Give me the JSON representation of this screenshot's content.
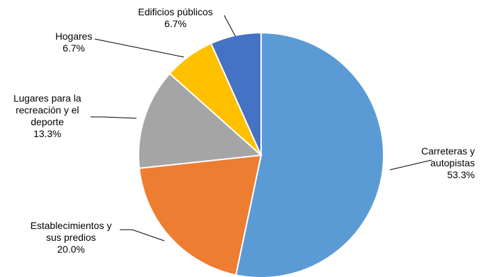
{
  "chart_data": {
    "type": "pie",
    "title": "",
    "slices": [
      {
        "label_lines": [
          "Carreteras y",
          "autopistas"
        ],
        "value": 53.3,
        "value_label": "53.3%",
        "color": "#5B9BD5"
      },
      {
        "label_lines": [
          "Establecimientos y",
          "sus predios"
        ],
        "value": 20.0,
        "value_label": "20.0%",
        "color": "#ED7D31"
      },
      {
        "label_lines": [
          "Lugares para la",
          "recreación y el",
          "deporte"
        ],
        "value": 13.3,
        "value_label": "13.3%",
        "color": "#A5A5A5"
      },
      {
        "label_lines": [
          "Hogares"
        ],
        "value": 6.7,
        "value_label": "6.7%",
        "color": "#FFC000"
      },
      {
        "label_lines": [
          "Edificios públicos"
        ],
        "value": 6.7,
        "value_label": "6.7%",
        "color": "#4472C4"
      }
    ]
  }
}
